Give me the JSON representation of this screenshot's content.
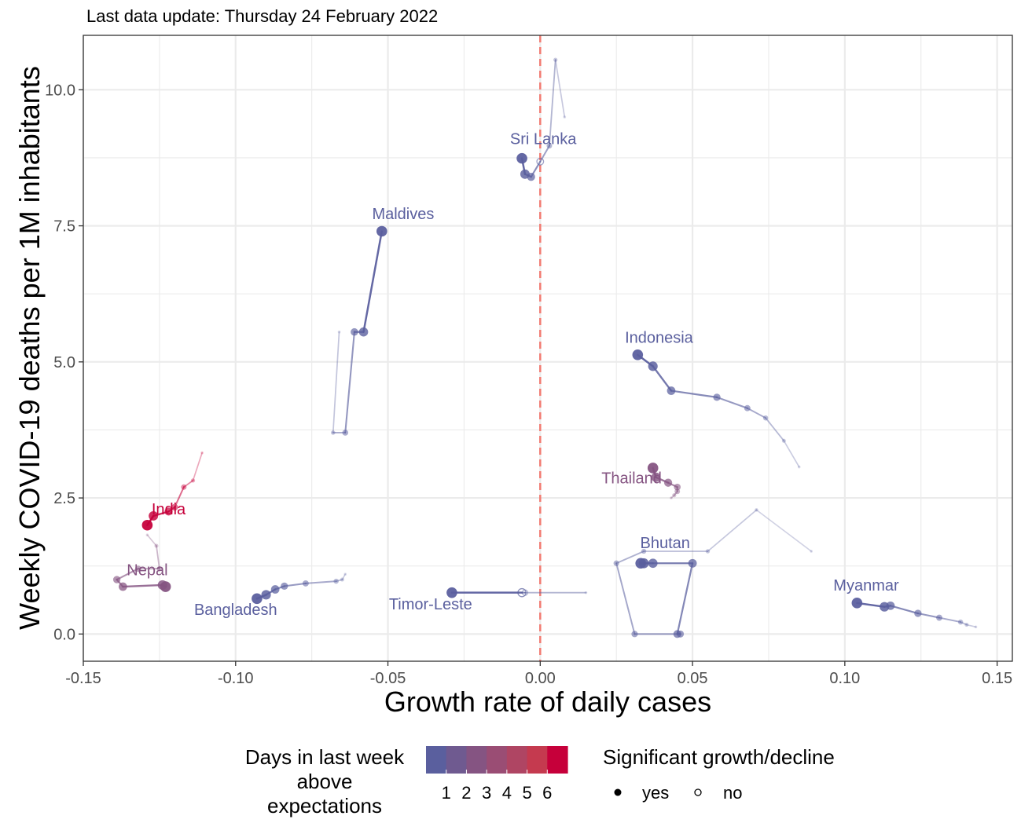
{
  "caption": "Last data update: Thursday 24 February 2022",
  "colors": {
    "reference_line": "#f27b72",
    "scale": [
      "#5a5f9e",
      "#6f5a90",
      "#855482",
      "#9a4d74",
      "#af4563",
      "#c53a4f",
      "#c6003a"
    ],
    "grid": "#ebebeb",
    "panel_border": "#333333"
  },
  "chart_data": {
    "type": "scatter",
    "xlabel": "Growth rate of daily cases",
    "ylabel": "Weekly COVID-19 deaths per 1M inhabitants",
    "xlim": [
      -0.15,
      0.155
    ],
    "ylim": [
      -0.5,
      11.0
    ],
    "x_ticks": [
      -0.15,
      -0.1,
      -0.05,
      0.0,
      0.05,
      0.1,
      0.15
    ],
    "x_tick_labels": [
      "-0.15",
      "-0.10",
      "-0.05",
      "0.00",
      "0.05",
      "0.10",
      "0.15"
    ],
    "y_ticks": [
      0.0,
      2.5,
      5.0,
      7.5,
      10.0
    ],
    "y_tick_labels": [
      "0.0",
      "2.5",
      "5.0",
      "7.5",
      "10.0"
    ],
    "grid": true,
    "reference_line_x": 0.0,
    "series": [
      {
        "name": "Sri Lanka",
        "days": 0,
        "label_xy": [
          0.001,
          9.0
        ],
        "points": [
          {
            "x": 0.008,
            "y": 9.5,
            "sig": true
          },
          {
            "x": 0.005,
            "y": 10.55,
            "sig": true
          },
          {
            "x": 0.003,
            "y": 8.97,
            "sig": true
          },
          {
            "x": 0.0,
            "y": 8.68,
            "sig": false
          },
          {
            "x": -0.003,
            "y": 8.4,
            "sig": true
          },
          {
            "x": -0.005,
            "y": 8.45,
            "sig": true
          },
          {
            "x": -0.006,
            "y": 8.74,
            "sig": true
          }
        ]
      },
      {
        "name": "Maldives",
        "days": 0,
        "label_xy": [
          -0.045,
          7.62
        ],
        "points": [
          {
            "x": -0.066,
            "y": 5.55,
            "sig": true
          },
          {
            "x": -0.068,
            "y": 3.7,
            "sig": true
          },
          {
            "x": -0.064,
            "y": 3.7,
            "sig": true
          },
          {
            "x": -0.061,
            "y": 5.55,
            "sig": true
          },
          {
            "x": -0.058,
            "y": 5.55,
            "sig": true
          },
          {
            "x": -0.052,
            "y": 7.4,
            "sig": true
          }
        ]
      },
      {
        "name": "Indonesia",
        "days": 0,
        "label_xy": [
          0.039,
          5.35
        ],
        "points": [
          {
            "x": 0.085,
            "y": 3.07,
            "sig": true
          },
          {
            "x": 0.08,
            "y": 3.55,
            "sig": true
          },
          {
            "x": 0.074,
            "y": 3.97,
            "sig": true
          },
          {
            "x": 0.068,
            "y": 4.15,
            "sig": true
          },
          {
            "x": 0.058,
            "y": 4.35,
            "sig": true
          },
          {
            "x": 0.043,
            "y": 4.47,
            "sig": true
          },
          {
            "x": 0.037,
            "y": 4.92,
            "sig": true
          },
          {
            "x": 0.032,
            "y": 5.13,
            "sig": true
          }
        ]
      },
      {
        "name": "Thailand",
        "days": 2,
        "label_xy": [
          0.03,
          2.77
        ],
        "points": [
          {
            "x": 0.043,
            "y": 2.5,
            "sig": true
          },
          {
            "x": 0.044,
            "y": 2.55,
            "sig": true
          },
          {
            "x": 0.045,
            "y": 2.62,
            "sig": true
          },
          {
            "x": 0.045,
            "y": 2.7,
            "sig": true
          },
          {
            "x": 0.042,
            "y": 2.78,
            "sig": true
          },
          {
            "x": 0.038,
            "y": 2.88,
            "sig": true
          },
          {
            "x": 0.037,
            "y": 3.05,
            "sig": true
          }
        ]
      },
      {
        "name": "India",
        "days": 6,
        "label_xy": [
          -0.122,
          2.2
        ],
        "points": [
          {
            "x": -0.111,
            "y": 3.33,
            "sig": true
          },
          {
            "x": -0.114,
            "y": 2.82,
            "sig": true
          },
          {
            "x": -0.117,
            "y": 2.7,
            "sig": true
          },
          {
            "x": -0.12,
            "y": 2.33,
            "sig": true
          },
          {
            "x": -0.122,
            "y": 2.25,
            "sig": true
          },
          {
            "x": -0.127,
            "y": 2.17,
            "sig": true
          },
          {
            "x": -0.129,
            "y": 2.0,
            "sig": true
          }
        ]
      },
      {
        "name": "Nepal",
        "days": 2,
        "label_xy": [
          -0.129,
          1.08
        ],
        "points": [
          {
            "x": -0.129,
            "y": 1.82,
            "sig": true
          },
          {
            "x": -0.126,
            "y": 1.62,
            "sig": true
          },
          {
            "x": -0.125,
            "y": 1.2,
            "sig": true
          },
          {
            "x": -0.132,
            "y": 1.2,
            "sig": true
          },
          {
            "x": -0.139,
            "y": 1.0,
            "sig": true
          },
          {
            "x": -0.137,
            "y": 0.87,
            "sig": true
          },
          {
            "x": -0.124,
            "y": 0.9,
            "sig": true
          },
          {
            "x": -0.123,
            "y": 0.87,
            "sig": true
          }
        ]
      },
      {
        "name": "Bangladesh",
        "days": 0,
        "label_xy": [
          -0.1,
          0.35
        ],
        "points": [
          {
            "x": -0.064,
            "y": 1.1,
            "sig": true
          },
          {
            "x": -0.065,
            "y": 1.0,
            "sig": true
          },
          {
            "x": -0.067,
            "y": 0.97,
            "sig": true
          },
          {
            "x": -0.077,
            "y": 0.93,
            "sig": true
          },
          {
            "x": -0.084,
            "y": 0.88,
            "sig": true
          },
          {
            "x": -0.087,
            "y": 0.82,
            "sig": true
          },
          {
            "x": -0.09,
            "y": 0.72,
            "sig": true
          },
          {
            "x": -0.093,
            "y": 0.65,
            "sig": true
          }
        ]
      },
      {
        "name": "Bhutan",
        "days": 0,
        "label_xy": [
          0.041,
          1.58
        ],
        "points": [
          {
            "x": 0.089,
            "y": 1.52,
            "sig": true
          },
          {
            "x": 0.071,
            "y": 2.28,
            "sig": true
          },
          {
            "x": 0.055,
            "y": 1.52,
            "sig": true
          },
          {
            "x": 0.034,
            "y": 1.52,
            "sig": true
          },
          {
            "x": 0.025,
            "y": 1.3,
            "sig": true
          },
          {
            "x": 0.031,
            "y": 0.0,
            "sig": true
          },
          {
            "x": 0.046,
            "y": 0.0,
            "sig": true
          },
          {
            "x": 0.045,
            "y": 0.0,
            "sig": true
          },
          {
            "x": 0.05,
            "y": 1.3,
            "sig": true
          },
          {
            "x": 0.037,
            "y": 1.3,
            "sig": true
          },
          {
            "x": 0.034,
            "y": 1.3,
            "sig": true
          },
          {
            "x": 0.033,
            "y": 1.3,
            "sig": true
          }
        ]
      },
      {
        "name": "Timor-Leste",
        "days": 0,
        "label_xy": [
          -0.036,
          0.45
        ],
        "points": [
          {
            "x": 0.015,
            "y": 0.76,
            "sig": true
          },
          {
            "x": -0.005,
            "y": 0.76,
            "sig": false
          },
          {
            "x": -0.006,
            "y": 0.76,
            "sig": false
          },
          {
            "x": -0.029,
            "y": 0.76,
            "sig": true
          }
        ]
      },
      {
        "name": "Myanmar",
        "days": 0,
        "label_xy": [
          0.107,
          0.8
        ],
        "points": [
          {
            "x": 0.143,
            "y": 0.13,
            "sig": true
          },
          {
            "x": 0.14,
            "y": 0.17,
            "sig": true
          },
          {
            "x": 0.138,
            "y": 0.22,
            "sig": true
          },
          {
            "x": 0.131,
            "y": 0.3,
            "sig": true
          },
          {
            "x": 0.124,
            "y": 0.38,
            "sig": true
          },
          {
            "x": 0.115,
            "y": 0.52,
            "sig": true
          },
          {
            "x": 0.113,
            "y": 0.5,
            "sig": true
          },
          {
            "x": 0.104,
            "y": 0.57,
            "sig": true
          }
        ]
      }
    ]
  },
  "legend": {
    "color_title_lines": [
      "Days in last week",
      "above",
      "expectations"
    ],
    "color_labels": [
      "1",
      "2",
      "3",
      "4",
      "5",
      "6"
    ],
    "shape_title": "Significant growth/decline",
    "shape_labels": [
      "yes",
      "no"
    ]
  }
}
